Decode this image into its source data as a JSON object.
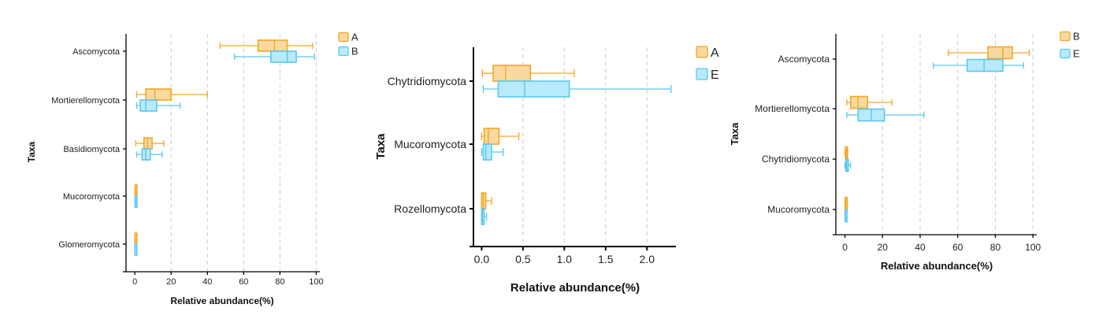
{
  "chart_data": [
    {
      "type": "boxplot",
      "title": "",
      "xlabel": "Relative abundance(%)",
      "ylabel": "Taxa",
      "xlim": [
        -4,
        102
      ],
      "xticks": [
        "0",
        "20",
        "40",
        "60",
        "80",
        "100"
      ],
      "grid": "vertical dashed",
      "legend": "top-right",
      "categories": [
        "Ascomycota",
        "Mortierellomycota",
        "Basidiomycota",
        "Mucoromycota",
        "Glomeromycota"
      ],
      "series": [
        {
          "name": "A",
          "color": "#F5A623",
          "fill": "#FAD9A1",
          "boxes": [
            {
              "min": 47,
              "q1": 68,
              "median": 77,
              "q3": 84,
              "max": 98
            },
            {
              "min": 1,
              "q1": 6,
              "median": 11,
              "q3": 20,
              "max": 40
            },
            {
              "min": 0.5,
              "q1": 5,
              "median": 7,
              "q3": 9.5,
              "max": 16
            },
            {
              "min": 0,
              "q1": 0.1,
              "median": 0.2,
              "q3": 0.4,
              "max": 0.7
            },
            {
              "min": 0,
              "q1": 0.05,
              "median": 0.1,
              "q3": 0.2,
              "max": 0.4
            }
          ]
        },
        {
          "name": "B",
          "color": "#5BC8EF",
          "fill": "#B8EAFB",
          "boxes": [
            {
              "min": 55,
              "q1": 75,
              "median": 84,
              "q3": 89,
              "max": 99
            },
            {
              "min": 1,
              "q1": 3,
              "median": 6,
              "q3": 12,
              "max": 25
            },
            {
              "min": 1,
              "q1": 4,
              "median": 6,
              "q3": 8.5,
              "max": 15
            },
            {
              "min": 0,
              "q1": 0.1,
              "median": 0.3,
              "q3": 0.6,
              "max": 1
            },
            {
              "min": 0,
              "q1": 0.03,
              "median": 0.08,
              "q3": 0.15,
              "max": 0.3
            }
          ]
        }
      ]
    },
    {
      "type": "boxplot",
      "title": "",
      "xlabel": "Relative abundance(%)",
      "ylabel": "Taxa",
      "xlim": [
        -0.08,
        2.35
      ],
      "xticks": [
        "0.0",
        "0.5",
        "1.0",
        "1.5",
        "2.0"
      ],
      "grid": "vertical dashed",
      "legend": "top-right",
      "categories": [
        "Chytridiomycota",
        "Mucoromycota",
        "Rozellomycota"
      ],
      "series": [
        {
          "name": "A",
          "color": "#F5A623",
          "fill": "#FAD9A1",
          "boxes": [
            {
              "min": 0.01,
              "q1": 0.14,
              "median": 0.29,
              "q3": 0.59,
              "max": 1.12
            },
            {
              "min": 0.0,
              "q1": 0.03,
              "median": 0.08,
              "q3": 0.21,
              "max": 0.45
            },
            {
              "min": 0.0,
              "q1": 0.0,
              "median": 0.02,
              "q3": 0.05,
              "max": 0.12
            }
          ]
        },
        {
          "name": "E",
          "color": "#5BC8EF",
          "fill": "#B8EAFB",
          "boxes": [
            {
              "min": 0.02,
              "q1": 0.2,
              "median": 0.52,
              "q3": 1.06,
              "max": 2.29
            },
            {
              "min": 0.0,
              "q1": 0.02,
              "median": 0.05,
              "q3": 0.12,
              "max": 0.26
            },
            {
              "min": 0.0,
              "q1": 0.0,
              "median": 0.01,
              "q3": 0.03,
              "max": 0.06
            }
          ]
        }
      ]
    },
    {
      "type": "boxplot",
      "title": "",
      "xlabel": "Relative abundance(%)",
      "ylabel": "Taxa",
      "xlim": [
        -4,
        102
      ],
      "xticks": [
        "0",
        "20",
        "40",
        "60",
        "80",
        "100"
      ],
      "grid": "vertical dashed",
      "legend": "top-right",
      "categories": [
        "Ascomycota",
        "Mortierellomycota",
        "Chytridiomycota",
        "Mucoromycota"
      ],
      "series": [
        {
          "name": "B",
          "color": "#F5A623",
          "fill": "#FAD9A1",
          "boxes": [
            {
              "min": 55,
              "q1": 76,
              "median": 84,
              "q3": 89,
              "max": 98
            },
            {
              "min": 1,
              "q1": 3,
              "median": 7,
              "q3": 12,
              "max": 25
            },
            {
              "min": 0,
              "q1": 0.3,
              "median": 0.6,
              "q3": 1,
              "max": 1.5
            },
            {
              "min": 0,
              "q1": 0.2,
              "median": 0.4,
              "q3": 0.7,
              "max": 1.2
            }
          ]
        },
        {
          "name": "E",
          "color": "#5BC8EF",
          "fill": "#B8EAFB",
          "boxes": [
            {
              "min": 47,
              "q1": 65,
              "median": 74,
              "q3": 84,
              "max": 95
            },
            {
              "min": 1,
              "q1": 7,
              "median": 14,
              "q3": 21,
              "max": 42
            },
            {
              "min": 0,
              "q1": 0.5,
              "median": 1,
              "q3": 1.8,
              "max": 3
            },
            {
              "min": 0,
              "q1": 0.1,
              "median": 0.2,
              "q3": 0.4,
              "max": 0.8
            }
          ]
        }
      ]
    }
  ]
}
